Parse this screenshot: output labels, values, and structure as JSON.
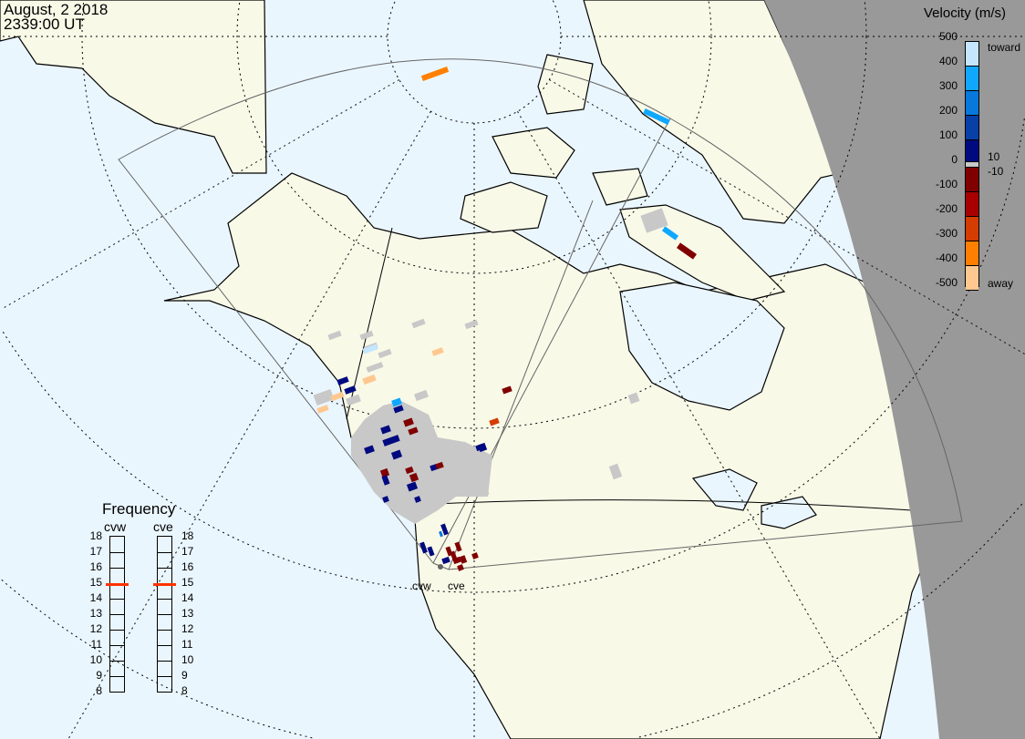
{
  "header": {
    "date": "August, 2 2018",
    "time": "2339:00 UT"
  },
  "colorbar": {
    "title": "Velocity (m/s)",
    "ticks": [
      "500",
      "400",
      "300",
      "200",
      "100",
      "0",
      "-100",
      "-200",
      "-300",
      "-400",
      "-500"
    ],
    "toward_label": "toward",
    "away_label": "away",
    "ground_scatter_upper": "10",
    "ground_scatter_lower": "-10",
    "colors": [
      "#c4e6ff",
      "#10a8ff",
      "#0878dc",
      "#0840a8",
      "#000a80",
      "#800000",
      "#a80000",
      "#d43c00",
      "#ff8000",
      "#ffc890"
    ],
    "ground_scatter_color": "#c8c8c8"
  },
  "frequency": {
    "title": "Frequency",
    "radars": [
      {
        "name": "cvw",
        "value_mhz": 14.9
      },
      {
        "name": "cve",
        "value_mhz": 14.9
      }
    ],
    "ticks": [
      "18",
      "17",
      "16",
      "15",
      "14",
      "13",
      "12",
      "11",
      "10",
      "9",
      "8"
    ],
    "range": [
      8,
      18
    ]
  },
  "map": {
    "radar_labels": [
      "cvw",
      "cve"
    ],
    "ocean_color": "#eaf6fe",
    "land_color": "#f9f9e8",
    "night_color": "#999999"
  }
}
